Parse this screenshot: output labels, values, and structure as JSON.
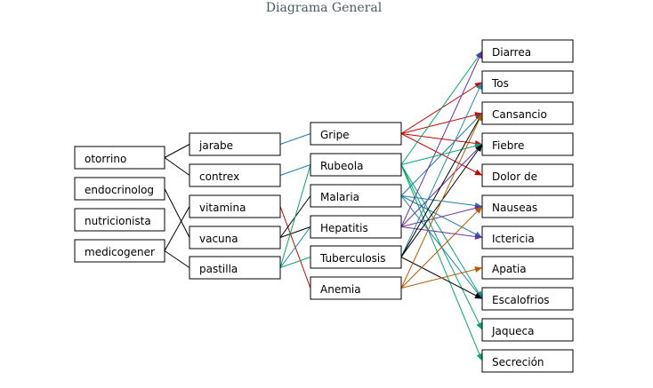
{
  "title": "Diagrama General",
  "nodes": {
    "otorrino": "otorrino",
    "endocrinolog": "endocrinolog",
    "nutricionista": "nutricionista",
    "medicogener": "medicogener",
    "jarabe": "jarabe",
    "contrex": "contrex",
    "vitamina": "vitamina",
    "vacuna": "vacuna",
    "pastilla": "pastilla",
    "gripe": "Gripe",
    "rubeola": "Rubeola",
    "malaria": "Malaria",
    "hepatitis": "Hepatitis",
    "tuberculosis": "Tuberculosis",
    "anemia": "Anemia",
    "diarrea": "Diarrea",
    "tos": "Tos",
    "cansancio": "Cansancio",
    "fiebre": "Fiebre",
    "dolor": "Dolor de",
    "nauseas": "Nauseas",
    "ictericia": "Ictericia",
    "apatia": "Apatia",
    "escalofrios": "Escalofrios",
    "jaqueca": "Jaqueca",
    "secrecion": "Secreción"
  },
  "colors": {
    "gripe": "#cc0000",
    "rubeola": "#00a86b",
    "malaria": "#1a7fa8",
    "hepatitis": "#6a2fa8",
    "tuberculosis": "#000000",
    "anemia": "#b85a00",
    "extra": "#2a8aa8"
  },
  "edges": [
    {
      "from": "otorrino",
      "to": "jarabe",
      "color": "#000000",
      "arrow": false
    },
    {
      "from": "otorrino",
      "to": "contrex",
      "color": "#000000",
      "arrow": false
    },
    {
      "from": "endocrinolog",
      "to": "vacuna",
      "color": "#000000",
      "arrow": false
    },
    {
      "from": "medicogener",
      "to": "vitamina",
      "color": "#000000",
      "arrow": false
    },
    {
      "from": "medicogener",
      "to": "pastilla",
      "color": "#000000",
      "arrow": false
    },
    {
      "from": "jarabe",
      "to": "gripe",
      "color": "#1a7fa8",
      "arrow": false
    },
    {
      "from": "contrex",
      "to": "rubeola",
      "color": "#1a7fa8",
      "arrow": false
    },
    {
      "from": "vitamina",
      "to": "anemia",
      "color": "#cc0000",
      "arrow": false
    },
    {
      "from": "vacuna",
      "to": "malaria",
      "color": "#000000",
      "arrow": false
    },
    {
      "from": "vacuna",
      "to": "hepatitis",
      "color": "#000000",
      "arrow": false
    },
    {
      "from": "pastilla",
      "to": "rubeola",
      "color": "#00a86b",
      "arrow": false
    },
    {
      "from": "pastilla",
      "to": "hepatitis",
      "color": "#1a7fa8",
      "arrow": false
    },
    {
      "from": "pastilla",
      "to": "tuberculosis",
      "color": "#00a86b",
      "arrow": false
    },
    {
      "from": "gripe",
      "to": "tos",
      "color": "#cc0000",
      "arrow": true
    },
    {
      "from": "gripe",
      "to": "cansancio",
      "color": "#cc0000",
      "arrow": true
    },
    {
      "from": "gripe",
      "to": "fiebre",
      "color": "#cc0000",
      "arrow": true
    },
    {
      "from": "gripe",
      "to": "dolor",
      "color": "#cc0000",
      "arrow": true
    },
    {
      "from": "rubeola",
      "to": "diarrea",
      "color": "#00a86b",
      "arrow": true
    },
    {
      "from": "rubeola",
      "to": "fiebre",
      "color": "#00a86b",
      "arrow": true
    },
    {
      "from": "rubeola",
      "to": "escalofrios",
      "color": "#00a86b",
      "arrow": true
    },
    {
      "from": "rubeola",
      "to": "jaqueca",
      "color": "#00a86b",
      "arrow": true
    },
    {
      "from": "rubeola",
      "to": "secrecion",
      "color": "#00a86b",
      "arrow": true
    },
    {
      "from": "malaria",
      "to": "cansancio",
      "color": "#1a7fa8",
      "arrow": true
    },
    {
      "from": "malaria",
      "to": "nauseas",
      "color": "#1a7fa8",
      "arrow": true
    },
    {
      "from": "malaria",
      "to": "ictericia",
      "color": "#1a7fa8",
      "arrow": true
    },
    {
      "from": "malaria",
      "to": "escalofrios",
      "color": "#1a7fa8",
      "arrow": true
    },
    {
      "from": "hepatitis",
      "to": "diarrea",
      "color": "#6a2fa8",
      "arrow": true
    },
    {
      "from": "hepatitis",
      "to": "nauseas",
      "color": "#6a2fa8",
      "arrow": true
    },
    {
      "from": "hepatitis",
      "to": "ictericia",
      "color": "#6a2fa8",
      "arrow": true
    },
    {
      "from": "hepatitis",
      "to": "fiebre",
      "color": "#6a2fa8",
      "arrow": true
    },
    {
      "from": "tuberculosis",
      "to": "tos",
      "color": "#2a8aa8",
      "arrow": true
    },
    {
      "from": "tuberculosis",
      "to": "cansancio",
      "color": "#000000",
      "arrow": true
    },
    {
      "from": "tuberculosis",
      "to": "fiebre",
      "color": "#000000",
      "arrow": true
    },
    {
      "from": "tuberculosis",
      "to": "escalofrios",
      "color": "#000000",
      "arrow": true
    },
    {
      "from": "anemia",
      "to": "cansancio",
      "color": "#b85a00",
      "arrow": true
    },
    {
      "from": "anemia",
      "to": "nauseas",
      "color": "#b85a00",
      "arrow": true
    },
    {
      "from": "anemia",
      "to": "apatia",
      "color": "#b85a00",
      "arrow": true
    }
  ]
}
